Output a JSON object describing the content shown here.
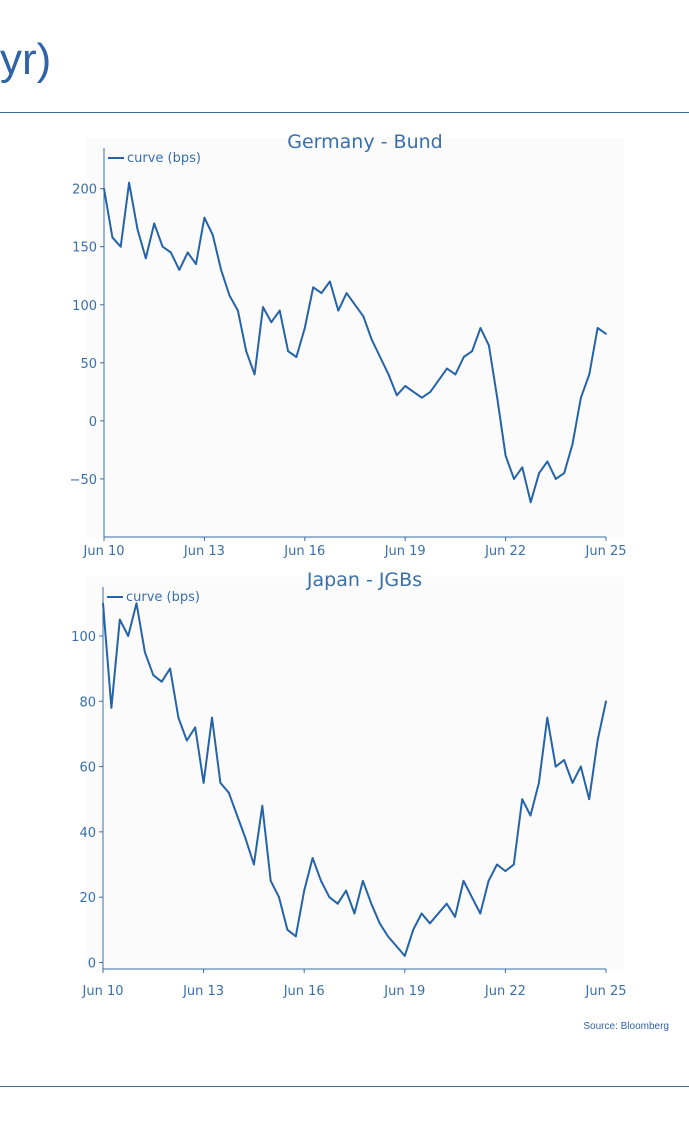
{
  "page": {
    "title_fragment": "yr)",
    "source": "Source: Bloomberg"
  },
  "colors": {
    "line": "#2563a8",
    "text": "#3a6fa8",
    "axis": "#3a6fa8",
    "background": "#fbfbfc"
  },
  "chart_data": [
    {
      "type": "line",
      "title": "Germany - Bund",
      "legend": {
        "entries": [
          "curve (bps)"
        ],
        "placement": "top-left"
      },
      "xlabel": "",
      "ylabel": "",
      "x_ticks": [
        "Jun 10",
        "Jun 13",
        "Jun 16",
        "Jun 19",
        "Jun 22",
        "Jun 25"
      ],
      "y_ticks": [
        -50,
        0,
        50,
        100,
        150,
        200
      ],
      "xlim": [
        "2010-06",
        "2025-06"
      ],
      "ylim": [
        -100,
        235
      ],
      "grid": false,
      "series": [
        {
          "name": "curve (bps)",
          "x": [
            "2010-06",
            "2010-09",
            "2010-12",
            "2011-03",
            "2011-06",
            "2011-09",
            "2011-12",
            "2012-03",
            "2012-06",
            "2012-09",
            "2012-12",
            "2013-03",
            "2013-06",
            "2013-09",
            "2013-12",
            "2014-03",
            "2014-06",
            "2014-09",
            "2014-12",
            "2015-03",
            "2015-06",
            "2015-09",
            "2015-12",
            "2016-03",
            "2016-06",
            "2016-09",
            "2016-12",
            "2017-03",
            "2017-06",
            "2017-09",
            "2017-12",
            "2018-03",
            "2018-06",
            "2018-09",
            "2018-12",
            "2019-03",
            "2019-06",
            "2019-09",
            "2019-12",
            "2020-03",
            "2020-06",
            "2020-09",
            "2020-12",
            "2021-03",
            "2021-06",
            "2021-09",
            "2021-12",
            "2022-03",
            "2022-06",
            "2022-09",
            "2022-12",
            "2023-03",
            "2023-06",
            "2023-09",
            "2023-12",
            "2024-03",
            "2024-06",
            "2024-09",
            "2024-12",
            "2025-03",
            "2025-06"
          ],
          "y": [
            200,
            158,
            150,
            205,
            165,
            140,
            170,
            150,
            145,
            130,
            145,
            135,
            175,
            160,
            130,
            108,
            95,
            60,
            40,
            98,
            85,
            95,
            60,
            55,
            80,
            115,
            110,
            120,
            95,
            110,
            100,
            90,
            70,
            55,
            40,
            22,
            30,
            25,
            20,
            25,
            35,
            45,
            40,
            55,
            60,
            80,
            65,
            20,
            -30,
            -50,
            -40,
            -70,
            -45,
            -35,
            -50,
            -45,
            -20,
            20,
            40,
            80,
            75
          ]
        }
      ]
    },
    {
      "type": "line",
      "title": "Japan - JGBs",
      "legend": {
        "entries": [
          "curve (bps)"
        ],
        "placement": "top-left"
      },
      "xlabel": "",
      "ylabel": "",
      "x_ticks": [
        "Jun 10",
        "Jun 13",
        "Jun 16",
        "Jun 19",
        "Jun 22",
        "Jun 25"
      ],
      "y_ticks": [
        0,
        20,
        40,
        60,
        80,
        100
      ],
      "xlim": [
        "2010-06",
        "2025-06"
      ],
      "ylim": [
        -2,
        115
      ],
      "grid": false,
      "series": [
        {
          "name": "curve (bps)",
          "x": [
            "2010-06",
            "2010-09",
            "2010-12",
            "2011-03",
            "2011-06",
            "2011-09",
            "2011-12",
            "2012-03",
            "2012-06",
            "2012-09",
            "2012-12",
            "2013-03",
            "2013-06",
            "2013-09",
            "2013-12",
            "2014-03",
            "2014-06",
            "2014-09",
            "2014-12",
            "2015-03",
            "2015-06",
            "2015-09",
            "2015-12",
            "2016-03",
            "2016-06",
            "2016-09",
            "2016-12",
            "2017-03",
            "2017-06",
            "2017-09",
            "2017-12",
            "2018-03",
            "2018-06",
            "2018-09",
            "2018-12",
            "2019-03",
            "2019-06",
            "2019-09",
            "2019-12",
            "2020-03",
            "2020-06",
            "2020-09",
            "2020-12",
            "2021-03",
            "2021-06",
            "2021-09",
            "2021-12",
            "2022-03",
            "2022-06",
            "2022-09",
            "2022-12",
            "2023-03",
            "2023-06",
            "2023-09",
            "2023-12",
            "2024-03",
            "2024-06",
            "2024-09",
            "2024-12",
            "2025-03",
            "2025-06"
          ],
          "y": [
            110,
            78,
            105,
            100,
            110,
            95,
            88,
            86,
            90,
            75,
            68,
            72,
            55,
            75,
            55,
            52,
            45,
            38,
            30,
            48,
            25,
            20,
            10,
            8,
            22,
            32,
            25,
            20,
            18,
            22,
            15,
            25,
            18,
            12,
            8,
            5,
            2,
            10,
            15,
            12,
            15,
            18,
            14,
            25,
            20,
            15,
            25,
            30,
            28,
            30,
            50,
            45,
            55,
            75,
            60,
            62,
            55,
            60,
            50,
            68,
            80
          ]
        }
      ]
    }
  ]
}
